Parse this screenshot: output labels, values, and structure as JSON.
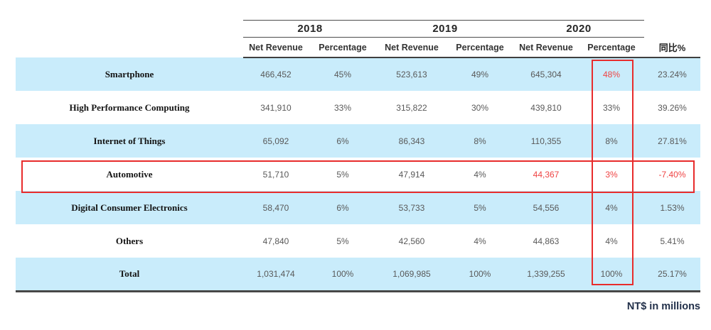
{
  "table": {
    "year_groups": [
      "2018",
      "2019",
      "2020"
    ],
    "sub_headers": [
      "Net Revenue",
      "Percentage"
    ],
    "yoy_header": "同比%",
    "footnote": "NT$ in millions",
    "rows": [
      {
        "label": "Smartphone",
        "values": [
          "466,452",
          "45%",
          "523,613",
          "49%",
          "645,304",
          "48%",
          "23.24%"
        ],
        "highlight_cells": [
          5
        ]
      },
      {
        "label": "High Performance Computing",
        "values": [
          "341,910",
          "33%",
          "315,822",
          "30%",
          "439,810",
          "33%",
          "39.26%"
        ],
        "highlight_cells": []
      },
      {
        "label": "Internet of Things",
        "values": [
          "65,092",
          "6%",
          "86,343",
          "8%",
          "110,355",
          "8%",
          "27.81%"
        ],
        "highlight_cells": []
      },
      {
        "label": "Automotive",
        "values": [
          "51,710",
          "5%",
          "47,914",
          "4%",
          "44,367",
          "3%",
          "-7.40%"
        ],
        "highlight_cells": [
          4,
          5,
          6
        ]
      },
      {
        "label": "Digital Consumer Electronics",
        "values": [
          "58,470",
          "6%",
          "53,733",
          "5%",
          "54,556",
          "4%",
          "1.53%"
        ],
        "highlight_cells": []
      },
      {
        "label": "Others",
        "values": [
          "47,840",
          "5%",
          "42,560",
          "4%",
          "44,863",
          "4%",
          "5.41%"
        ],
        "highlight_cells": []
      },
      {
        "label": "Total",
        "values": [
          "1,031,474",
          "100%",
          "1,069,985",
          "100%",
          "1,339,255",
          "100%",
          "25.17%"
        ],
        "highlight_cells": []
      }
    ],
    "annotations": {
      "highlighted_column": "2020 Percentage",
      "highlighted_row": "Automotive"
    }
  },
  "colors": {
    "row_highlight_blue": "#c9ecfb",
    "value_text_gray": "#595959",
    "alert_red": "#ef4444",
    "box_border_red": "#e82c2c",
    "footnote_navy": "#22304a"
  }
}
